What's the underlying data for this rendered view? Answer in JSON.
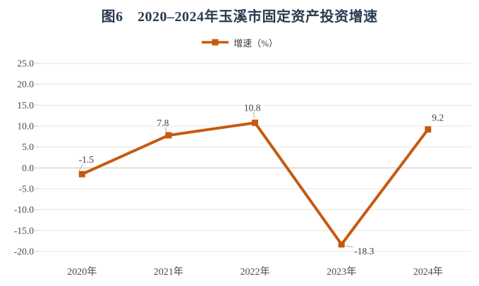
{
  "title": "图6　2020–2024年玉溪市固定资产投资增速",
  "legend": {
    "label": "增速（%）",
    "marker": "square-on-line"
  },
  "colors": {
    "series": "#C55A11",
    "grid": "#E7E9E1",
    "zero_line": "#C2C5BD",
    "tick": "#CDD0C8",
    "axis_text": "#4A4A46",
    "data_label_text": "#3D3D3D",
    "title_text": "#2B3A52",
    "legend_text": "#3A3A3A",
    "leader_line": "#A9ACA6",
    "background": "#FFFFFF"
  },
  "chart_data": {
    "type": "line",
    "title": "图6　2020–2024年玉溪市固定资产投资增速",
    "categories": [
      "2020年",
      "2021年",
      "2022年",
      "2023年",
      "2024年"
    ],
    "series": [
      {
        "name": "增速（%）",
        "values": [
          -1.5,
          7.8,
          10.8,
          -18.3,
          9.2
        ]
      }
    ],
    "data_labels": [
      "-1.5",
      "7.8",
      "10.8",
      "-18.3",
      "9.2"
    ],
    "xlabel": "",
    "ylabel": "",
    "ylim": [
      -20,
      25
    ],
    "ytick_step": 5,
    "yticks": [
      "25.0",
      "20.0",
      "15.0",
      "10.0",
      "5.0",
      "0.0",
      "-5.0",
      "-10.0",
      "-15.0",
      "-20.0"
    ],
    "grid": true,
    "legend_position": "top",
    "marker": "square"
  }
}
